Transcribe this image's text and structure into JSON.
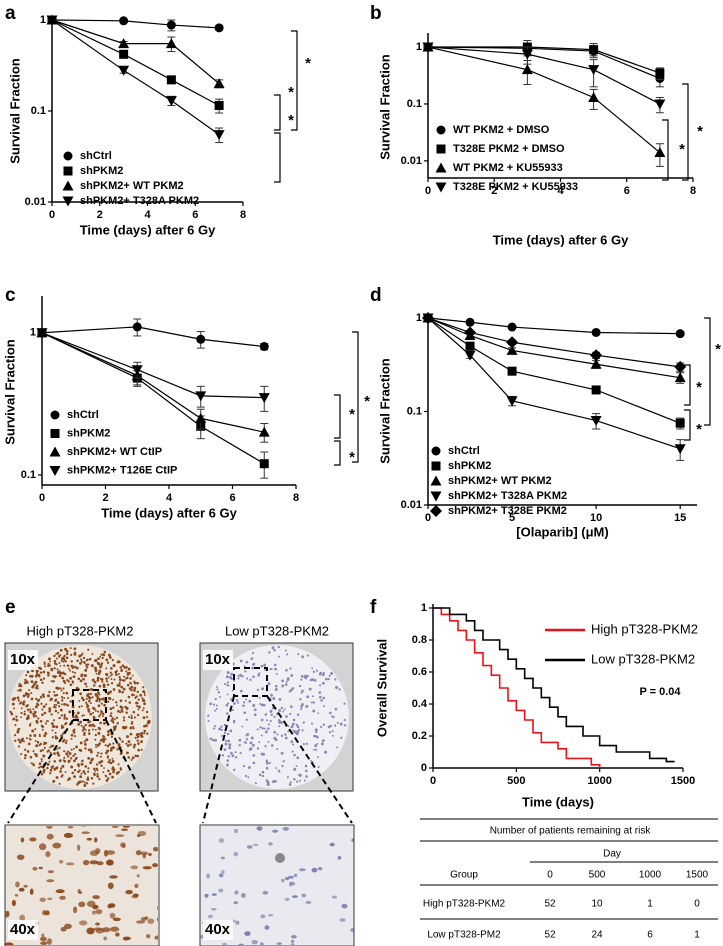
{
  "chart_data": [
    {
      "panel": "a",
      "type": "line",
      "log_y": true,
      "xlabel": "Time (days) after 6 Gy",
      "ylabel": "Survival Fraction",
      "x": [
        0,
        3,
        5,
        7
      ],
      "xlim": [
        0,
        8
      ],
      "xticks": [
        0,
        2,
        4,
        6,
        8
      ],
      "ylim": [
        0.01,
        1
      ],
      "yticks": [
        0.01,
        0.1,
        1
      ],
      "series": [
        {
          "name": "shCtrl",
          "marker": "circle",
          "color": "#000000",
          "values": [
            1,
            0.98,
            0.88,
            0.82
          ],
          "errors": [
            0,
            0.03,
            0.12,
            0.04
          ]
        },
        {
          "name": "shPKM2",
          "marker": "square",
          "color": "#000000",
          "values": [
            1,
            0.42,
            0.22,
            0.115
          ],
          "errors": [
            0,
            0.03,
            0.02,
            0.02
          ]
        },
        {
          "name": "shPKM2+ WT PKM2",
          "marker": "triangle-up",
          "color": "#000000",
          "values": [
            1,
            0.55,
            0.55,
            0.2
          ],
          "errors": [
            0,
            0.03,
            0.1,
            0.02
          ]
        },
        {
          "name": "shPKM2+ T328A PKM2",
          "marker": "triangle-down",
          "color": "#000000",
          "values": [
            1,
            0.28,
            0.13,
            0.055
          ],
          "errors": [
            0,
            0.02,
            0.015,
            0.01
          ]
        }
      ],
      "annotations": [
        "*",
        "*",
        "*"
      ]
    },
    {
      "panel": "b",
      "type": "line",
      "log_y": true,
      "xlabel": "Time (days) after 6 Gy",
      "ylabel": "Survival Fraction",
      "x": [
        0,
        3,
        5,
        7
      ],
      "xlim": [
        0,
        8
      ],
      "xticks": [
        0,
        2,
        4,
        6,
        8
      ],
      "ylim": [
        0.005,
        1.5
      ],
      "yticks": [
        0.01,
        0.1,
        1
      ],
      "series": [
        {
          "name": "WT PKM2 + DMSO",
          "marker": "circle",
          "color": "#000000",
          "values": [
            1,
            0.95,
            0.85,
            0.28
          ],
          "errors": [
            0,
            0.2,
            0.15,
            0.08
          ]
        },
        {
          "name": "T328E PKM2 + DMSO",
          "marker": "square",
          "color": "#000000",
          "values": [
            1,
            1.0,
            0.9,
            0.35
          ],
          "errors": [
            0,
            0.3,
            0.25,
            0.08
          ]
        },
        {
          "name": "WT PKM2 + KU55933",
          "marker": "triangle-up",
          "color": "#000000",
          "values": [
            1,
            0.4,
            0.13,
            0.014
          ],
          "errors": [
            0,
            0.18,
            0.05,
            0.006
          ]
        },
        {
          "name": "T328E PKM2 + KU55933",
          "marker": "triangle-down",
          "color": "#000000",
          "values": [
            1,
            0.75,
            0.4,
            0.1
          ],
          "errors": [
            0,
            0.25,
            0.2,
            0.03
          ]
        }
      ],
      "annotations": [
        "*",
        "*"
      ]
    },
    {
      "panel": "c",
      "type": "line",
      "log_y": true,
      "xlabel": "Time (days) after 6 Gy",
      "ylabel": "Survival Fraction",
      "x": [
        0,
        3,
        5,
        7
      ],
      "xlim": [
        0,
        8
      ],
      "xticks": [
        0,
        2,
        4,
        6,
        8
      ],
      "ylim": [
        0.085,
        1.7
      ],
      "yticks": [
        0.1,
        1
      ],
      "series": [
        {
          "name": "shCtrl",
          "marker": "circle",
          "color": "#000000",
          "values": [
            1,
            1.1,
            0.9,
            0.8
          ],
          "errors": [
            0,
            0.15,
            0.12,
            0.04
          ]
        },
        {
          "name": "shPKM2",
          "marker": "square",
          "color": "#000000",
          "values": [
            1,
            0.48,
            0.22,
            0.12
          ],
          "errors": [
            0,
            0.06,
            0.04,
            0.025
          ]
        },
        {
          "name": "shPKM2+ WT CtIP",
          "marker": "triangle-up",
          "color": "#000000",
          "values": [
            1,
            0.5,
            0.25,
            0.2
          ],
          "errors": [
            0,
            0.07,
            0.04,
            0.03
          ]
        },
        {
          "name": "shPKM2+ T126E CtIP",
          "marker": "triangle-down",
          "color": "#000000",
          "values": [
            1,
            0.55,
            0.36,
            0.35
          ],
          "errors": [
            0,
            0.07,
            0.06,
            0.07
          ]
        }
      ],
      "annotations": [
        "*",
        "*",
        "*"
      ]
    },
    {
      "panel": "d",
      "type": "line",
      "log_y": true,
      "xlabel": "[Olaparib] (μM)",
      "ylabel": "Survival Fraction",
      "x": [
        0,
        2.5,
        5,
        10,
        15
      ],
      "xlim": [
        0,
        16
      ],
      "xticks": [
        0,
        5,
        10,
        15
      ],
      "ylim": [
        0.01,
        1
      ],
      "yticks": [
        0.01,
        0.1,
        1
      ],
      "series": [
        {
          "name": "shCtrl",
          "marker": "circle",
          "color": "#000000",
          "values": [
            1,
            0.9,
            0.8,
            0.7,
            0.68
          ],
          "errors": [
            0,
            0.03,
            0.03,
            0.03,
            0.03
          ]
        },
        {
          "name": "shPKM2",
          "marker": "square",
          "color": "#000000",
          "values": [
            1,
            0.5,
            0.27,
            0.17,
            0.075
          ],
          "errors": [
            0,
            0.03,
            0.02,
            0.015,
            0.01
          ]
        },
        {
          "name": "shPKM2+ WT PKM2",
          "marker": "triangle-up",
          "color": "#000000",
          "values": [
            1,
            0.65,
            0.45,
            0.32,
            0.23
          ],
          "errors": [
            0,
            0.03,
            0.03,
            0.03,
            0.03
          ]
        },
        {
          "name": "shPKM2+ T328A PKM2",
          "marker": "triangle-down",
          "color": "#000000",
          "values": [
            1,
            0.4,
            0.13,
            0.08,
            0.04
          ],
          "errors": [
            0,
            0.03,
            0.015,
            0.015,
            0.01
          ]
        },
        {
          "name": "shPKM2+ T328E PKM2",
          "marker": "diamond",
          "color": "#000000",
          "values": [
            1,
            0.7,
            0.55,
            0.4,
            0.3
          ],
          "errors": [
            0,
            0.03,
            0.03,
            0.03,
            0.03
          ]
        }
      ],
      "annotations": [
        "*",
        "*",
        "*"
      ]
    },
    {
      "panel": "f",
      "type": "step",
      "log_y": false,
      "xlabel": "Time (days)",
      "ylabel": "Overall Survival",
      "xlim": [
        0,
        1500
      ],
      "xticks": [
        0,
        500,
        1000,
        1500
      ],
      "ylim": [
        0,
        1
      ],
      "yticks": [
        0,
        0.2,
        0.4,
        0.6,
        0.8,
        1
      ],
      "series": [
        {
          "name": "High pT328-PKM2",
          "color": "#e8141b",
          "x": [
            0,
            50,
            50,
            100,
            100,
            150,
            150,
            200,
            200,
            250,
            250,
            300,
            300,
            350,
            350,
            400,
            400,
            450,
            450,
            500,
            500,
            550,
            550,
            600,
            600,
            650,
            650,
            750,
            750,
            800,
            800,
            950,
            950,
            1000,
            1000
          ],
          "values": [
            1,
            1,
            0.96,
            0.96,
            0.92,
            0.92,
            0.86,
            0.86,
            0.8,
            0.8,
            0.72,
            0.72,
            0.64,
            0.64,
            0.58,
            0.58,
            0.5,
            0.5,
            0.42,
            0.42,
            0.36,
            0.36,
            0.3,
            0.3,
            0.22,
            0.22,
            0.16,
            0.16,
            0.12,
            0.12,
            0.06,
            0.06,
            0.02,
            0.02,
            0
          ]
        },
        {
          "name": "Low pT328-PKM2",
          "color": "#000000",
          "x": [
            0,
            100,
            100,
            200,
            200,
            250,
            250,
            300,
            300,
            400,
            400,
            450,
            450,
            500,
            500,
            550,
            550,
            600,
            600,
            650,
            650,
            700,
            700,
            750,
            750,
            800,
            800,
            900,
            900,
            1000,
            1000,
            1100,
            1100,
            1300,
            1300,
            1400,
            1400,
            1450
          ],
          "values": [
            1,
            1,
            0.96,
            0.96,
            0.92,
            0.92,
            0.86,
            0.86,
            0.8,
            0.8,
            0.74,
            0.74,
            0.68,
            0.68,
            0.62,
            0.62,
            0.56,
            0.56,
            0.5,
            0.5,
            0.44,
            0.44,
            0.38,
            0.38,
            0.32,
            0.32,
            0.26,
            0.26,
            0.2,
            0.2,
            0.14,
            0.14,
            0.1,
            0.1,
            0.06,
            0.06,
            0.04,
            0.04
          ]
        }
      ],
      "annotations": [
        "P = 0.04"
      ]
    }
  ],
  "panel_e": {
    "letter": "e",
    "high_label": "High pT328-PKM2",
    "low_label": "Low pT328-PKM2",
    "top_magnification": "10x",
    "bottom_magnification": "40x"
  },
  "risk_table": {
    "title": "Number of patients remaining at risk",
    "day_label": "Day",
    "columns": [
      "Group",
      "0",
      "500",
      "1000",
      "1500"
    ],
    "rows": [
      [
        "High pT328-PKM2",
        "52",
        "10",
        "1",
        "0"
      ],
      [
        "Low pT328-PM2",
        "52",
        "24",
        "6",
        "1"
      ]
    ]
  }
}
